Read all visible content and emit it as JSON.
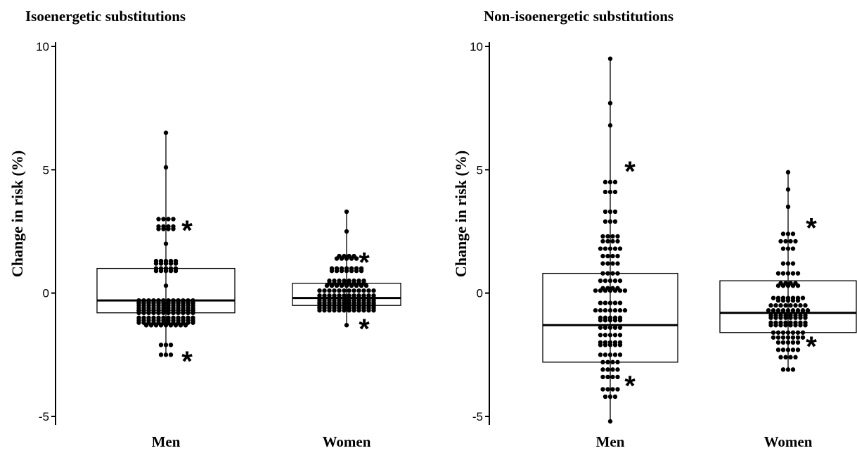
{
  "chart_data": [
    {
      "type": "box",
      "title": "Isoenergetic substitutions",
      "xlabel": "",
      "ylabel": "Change in risk (%)",
      "ylim": [
        -5,
        10
      ],
      "yticks": [
        "10",
        "5",
        "0",
        "-5"
      ],
      "categories": [
        "Men",
        "Women"
      ],
      "grid": false,
      "boxes": [
        {
          "category": "Men",
          "q1": -0.8,
          "median": -0.3,
          "q3": 1.0,
          "star_marks": [
            2.9,
            -2.4
          ]
        },
        {
          "category": "Women",
          "q1": -0.5,
          "median": -0.2,
          "q3": 0.4,
          "star_marks": [
            1.6,
            -1.1
          ]
        }
      ],
      "points": [
        {
          "category": "Men",
          "values": [
            6.5,
            5.1,
            3.0,
            2.7,
            2.6,
            2.0,
            1.3,
            1.2,
            1.0,
            0.9,
            0.3,
            -0.3,
            -0.4,
            -0.4,
            -0.5,
            -0.6,
            -0.7,
            -0.7,
            -0.7,
            -0.8,
            -0.8,
            -1.0,
            -1.1,
            -1.2,
            -1.3,
            -1.3,
            -2.1,
            -2.5
          ]
        },
        {
          "category": "Women",
          "values": [
            3.3,
            2.5,
            1.5,
            1.4,
            1.0,
            0.9,
            0.5,
            0.4,
            0.3,
            0.1,
            -0.1,
            -0.2,
            -0.2,
            -0.3,
            -0.4,
            -0.4,
            -0.5,
            -0.5,
            -0.5,
            -0.6,
            -0.6,
            -0.7,
            -1.3
          ]
        }
      ]
    },
    {
      "type": "box",
      "title": "Non-isoenergetic substitutions",
      "xlabel": "",
      "ylabel": "Change in risk (%)",
      "ylim": [
        -5,
        10
      ],
      "yticks": [
        "10",
        "5",
        "0",
        "-5"
      ],
      "categories": [
        "Men",
        "Women"
      ],
      "grid": false,
      "boxes": [
        {
          "category": "Men",
          "q1": -2.8,
          "median": -1.3,
          "q3": 0.8,
          "star_marks": [
            5.3,
            -3.4
          ]
        },
        {
          "category": "Women",
          "q1": -1.6,
          "median": -0.8,
          "q3": 0.5,
          "star_marks": [
            3.0,
            -1.8
          ]
        }
      ],
      "points": [
        {
          "category": "Men",
          "values": [
            9.5,
            7.7,
            6.8,
            4.5,
            4.1,
            3.3,
            2.9,
            2.3,
            2.1,
            1.8,
            1.5,
            1.2,
            0.8,
            0.5,
            0.2,
            0.1,
            -0.4,
            -0.4,
            -0.7,
            -1.0,
            -1.1,
            -1.4,
            -1.7,
            -2.0,
            -2.1,
            -2.5,
            -2.8,
            -3.1,
            -3.4,
            -3.9,
            -4.2,
            -5.2
          ]
        },
        {
          "category": "Women",
          "values": [
            4.9,
            4.2,
            3.5,
            2.4,
            2.1,
            1.8,
            1.2,
            0.8,
            0.4,
            0.3,
            -0.2,
            -0.3,
            -0.5,
            -0.7,
            -0.9,
            -1.0,
            -1.2,
            -1.3,
            -1.6,
            -1.8,
            -2.0,
            -2.3,
            -2.6,
            -3.1
          ]
        }
      ]
    }
  ],
  "marker_symbol": "*"
}
